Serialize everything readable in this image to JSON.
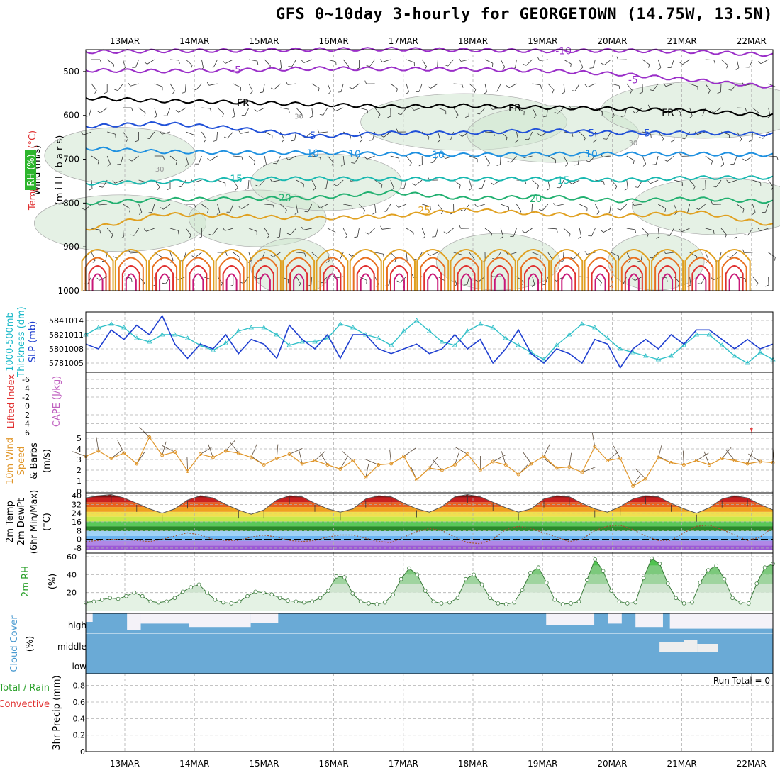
{
  "title": "GFS 0~10day 3-hourly for GEORGETOWN (14.75W, 13.5N)",
  "chart_data": {
    "type": "meteogram",
    "dates": [
      "13MAR",
      "14MAR",
      "15MAR",
      "16MAR",
      "17MAR",
      "18MAR",
      "19MAR",
      "20MAR",
      "21MAR",
      "22MAR"
    ],
    "colors": {
      "grid": "#b0b0b0",
      "slp": "#1f3fd0",
      "thick": "#30c0c8",
      "wind10": "#e0962a",
      "rh": "#2aa02a",
      "cloud": "#6aaad6",
      "cape": "#e04040"
    },
    "panels": [
      {
        "id": "upper",
        "labels": [
          {
            "text": "Wind (m/s)",
            "color": "#000000"
          },
          {
            "text": "Temperature (°C)",
            "color": "#e03030"
          },
          {
            "text": "(m i l l i b a r s)",
            "color": "#000000"
          },
          {
            "text": "RH (%)",
            "color": "#ffffff",
            "bg": "#2db52d"
          }
        ],
        "pressure_ticks": [
          500,
          600,
          700,
          800,
          900,
          1000
        ],
        "ylim": [
          450,
          1000
        ],
        "temp_contours": [
          {
            "level": "-10",
            "color": "#9a2ec8",
            "values": [
              455,
              453,
              452,
              450,
              449,
              451,
              453,
              452,
              455,
              462
            ]
          },
          {
            "level": "-5",
            "color": "#9a2ec8",
            "values": [
              497,
              499,
              497,
              493,
              494,
              495,
              498,
              506,
              520,
              535
            ]
          },
          {
            "level": "FR",
            "color": "#000000",
            "values": [
              560,
              567,
              570,
              575,
              580,
              578,
              582,
              585,
              590,
              600
            ]
          },
          {
            "level": "5",
            "color": "#2050d8",
            "values": [
              625,
              618,
              630,
              648,
              640,
              640,
              634,
              640,
              640,
              643
            ]
          },
          {
            "level": "10",
            "color": "#1e90e0",
            "values": [
              675,
              683,
              685,
              685,
              688,
              690,
              688,
              688,
              688,
              690
            ]
          },
          {
            "level": "15",
            "color": "#18b8b0",
            "values": [
              755,
              752,
              745,
              744,
              745,
              745,
              745,
              748,
              742,
              742
            ]
          },
          {
            "level": "20",
            "color": "#22b070",
            "values": [
              800,
              792,
              790,
              788,
              775,
              790,
              785,
              795,
              790,
              797
            ]
          },
          {
            "level": "25",
            "color": "#e0a020",
            "values": [
              860,
              825,
              830,
              835,
              830,
              815,
              825,
              830,
              820,
              850
            ]
          }
        ],
        "contour_labels": [
          {
            "text": "-10",
            "date_index": 6.3
          },
          {
            "text": "-5",
            "date_index": 1.6
          },
          {
            "text": "-5",
            "date_index": 7.3
          },
          {
            "text": "FR",
            "date_index": 1.7
          },
          {
            "text": "FR",
            "date_index": 5.6
          },
          {
            "text": "FR",
            "date_index": 7.8
          },
          {
            "text": "5",
            "date_index": 2.7
          },
          {
            "text": "5",
            "date_index": 6.7
          },
          {
            "text": "10",
            "date_index": 2.7
          },
          {
            "text": "10",
            "date_index": 6.7
          },
          {
            "text": "15",
            "date_index": 1.6
          },
          {
            "text": "15",
            "date_index": 6.3
          },
          {
            "text": "20",
            "date_index": 2.3
          },
          {
            "text": "20",
            "date_index": 5.9
          },
          {
            "text": "25",
            "date_index": 4.3
          },
          {
            "text": "5",
            "date_index": 7.5
          },
          {
            "text": "30",
            "date_index": 2.5
          },
          {
            "text": "30",
            "date_index": 7.3
          },
          {
            "text": "30",
            "date_index": 0.5
          },
          {
            "text": "10",
            "date_index": 3.3
          },
          {
            "text": "10",
            "date_index": 4.5
          }
        ]
      },
      {
        "id": "slp",
        "labels": [
          {
            "text": "1000-500mb",
            "color": "#18b8c8"
          },
          {
            "text": "Thickness (dm)",
            "color": "#18b8c8"
          },
          {
            "text": "SLP (mb)",
            "color": "#2040d0"
          }
        ],
        "left_ticks": [
          578,
          580,
          582,
          584
        ],
        "right_ticks": [
          1005,
          1008,
          1011,
          1014
        ],
        "slp_series": [
          1009,
          1008,
          1012,
          1010,
          1013,
          1011,
          1015,
          1009,
          1006,
          1009,
          1008,
          1011,
          1007,
          1010,
          1009,
          1006,
          1013,
          1010,
          1008,
          1011,
          1006,
          1011,
          1011,
          1008,
          1007,
          1008,
          1009,
          1007,
          1008,
          1011,
          1008,
          1010,
          1005,
          1008,
          1012,
          1007,
          1005,
          1008,
          1007,
          1005,
          1010,
          1009,
          1004,
          1008,
          1010,
          1008,
          1011,
          1009,
          1012,
          1012,
          1010,
          1008,
          1010,
          1008,
          1009
        ],
        "thick_series": [
          582,
          583,
          583.5,
          583,
          581.5,
          581,
          582,
          582,
          581.5,
          580.5,
          579.8,
          580.8,
          582.5,
          583,
          583,
          582,
          580.5,
          581,
          581,
          581.5,
          583.5,
          583,
          582,
          581.5,
          580.5,
          582.5,
          584,
          582.5,
          581,
          580.5,
          582.5,
          583.5,
          583,
          581.5,
          580.5,
          579.5,
          578.5,
          580.5,
          582,
          583.5,
          583,
          581.5,
          580,
          579.5,
          579,
          578.5,
          579,
          580.5,
          582,
          582,
          580.5,
          579,
          578,
          579.5,
          578.5
        ]
      },
      {
        "id": "cape",
        "labels": [
          {
            "text": "Lifted Index",
            "color": "#e03030"
          },
          {
            "text": "CAPE (J/kg)",
            "color": "#c060c0"
          }
        ],
        "left_ticks": [
          "-6",
          "-4",
          "-2",
          "0",
          "2",
          "4",
          "6"
        ]
      },
      {
        "id": "wind10",
        "labels": [
          {
            "text": "10m Wind",
            "color": "#e0962a"
          },
          {
            "text": "Speed",
            "color": "#e0962a"
          },
          {
            "text": "& Barbs",
            "color": "#000000"
          },
          {
            "text": "(m/s)",
            "color": "#000000"
          }
        ],
        "left_ticks": [
          0,
          1,
          2,
          3,
          4,
          5
        ],
        "series": [
          3.3,
          3.8,
          3.1,
          3.6,
          2.6,
          5.1,
          3.4,
          3.7,
          1.9,
          3.5,
          3.2,
          3.8,
          3.6,
          3.2,
          2.5,
          3.1,
          3.5,
          2.6,
          2.9,
          2.5,
          2.1,
          2.9,
          1.3,
          2.5,
          2.6,
          3.3,
          1.1,
          2.2,
          2.0,
          2.5,
          3.5,
          2.0,
          2.8,
          2.5,
          1.6,
          2.6,
          3.3,
          2.2,
          2.3,
          1.8,
          4.2,
          2.9,
          3.1,
          0.5,
          1.2,
          3.2,
          2.7,
          2.5,
          2.9,
          2.5,
          3.1,
          2.9,
          2.6,
          2.8,
          2.7
        ]
      },
      {
        "id": "temp2m",
        "labels": [
          {
            "text": "2m Temp",
            "color": "#000000"
          },
          {
            "text": "2m DewPt",
            "color": "#000000"
          },
          {
            "text": "(6hr Min/Max)",
            "color": "#000000"
          },
          {
            "text": "(°C)",
            "color": "#000000"
          }
        ],
        "left_ticks": [
          "-8",
          "0",
          "8",
          "16",
          "24",
          "32",
          "40"
        ],
        "temp_series": [
          38,
          40,
          41,
          38,
          33,
          28,
          24,
          28,
          36,
          40,
          38,
          32,
          27,
          23,
          27,
          36,
          40,
          39,
          33,
          28,
          25,
          28,
          37,
          40,
          39,
          33,
          28,
          25,
          30,
          39,
          41,
          39,
          34,
          29,
          25,
          28,
          37,
          40,
          39,
          33,
          28,
          25,
          30,
          37,
          40,
          39,
          33,
          28,
          24,
          29,
          37,
          40,
          38,
          32,
          27
        ],
        "dew_series": [
          -2,
          -1,
          0,
          0,
          -1,
          -2,
          0,
          3,
          6,
          4,
          0,
          -1,
          -1,
          2,
          4,
          2,
          -1,
          -2,
          -1,
          2,
          4,
          4,
          1,
          -2,
          -3,
          2,
          7,
          10,
          8,
          2,
          -3,
          -4,
          0,
          9,
          12,
          10,
          6,
          2,
          -2,
          0,
          8,
          12,
          13,
          9,
          3,
          -1,
          -1,
          6,
          12,
          13,
          9,
          4,
          -1,
          2,
          11
        ],
        "color_bands": [
          "#9b59d6",
          "#b088e6",
          "#6bb4f0",
          "#9fd2f5",
          "#2a8a2a",
          "#59c859",
          "#c8e84a",
          "#f0e050",
          "#f0a020",
          "#e86020",
          "#c82020",
          "#801010"
        ]
      },
      {
        "id": "rh2m",
        "labels": [
          {
            "text": "2m RH",
            "color": "#2aa02a"
          },
          {
            "text": "(%)",
            "color": "#000000"
          }
        ],
        "left_ticks": [
          20,
          40,
          60
        ],
        "series": [
          9,
          10,
          12,
          14,
          13,
          16,
          20,
          16,
          10,
          9,
          10,
          14,
          21,
          26,
          29,
          20,
          12,
          9,
          8,
          10,
          16,
          21,
          20,
          18,
          14,
          11,
          10,
          9,
          10,
          14,
          22,
          38,
          37,
          19,
          10,
          8,
          7,
          9,
          18,
          35,
          47,
          40,
          22,
          10,
          8,
          9,
          14,
          35,
          40,
          29,
          14,
          8,
          7,
          9,
          23,
          42,
          48,
          31,
          12,
          7,
          8,
          10,
          34,
          57,
          44,
          22,
          10,
          8,
          9,
          36,
          58,
          52,
          30,
          14,
          8,
          9,
          31,
          45,
          50,
          35,
          14,
          9,
          8,
          30,
          48,
          52
        ]
      },
      {
        "id": "cloud",
        "labels": [
          {
            "text": "Cloud Cover",
            "color": "#4a9ad0"
          },
          {
            "text": "(%)",
            "color": "#000000"
          }
        ],
        "layers": [
          "high",
          "middle",
          "low"
        ]
      },
      {
        "id": "precip",
        "labels": [
          {
            "text": "Total / Rain",
            "color": "#2aa02a"
          },
          {
            "text": "Convective",
            "color": "#e03030"
          },
          {
            "text": "3hr Precip (mm)",
            "color": "#000000"
          }
        ],
        "left_ticks": [
          "0",
          "0.2",
          "0.4",
          "0.6",
          "0.8"
        ],
        "run_total_label": "Run Total = 0"
      }
    ]
  }
}
